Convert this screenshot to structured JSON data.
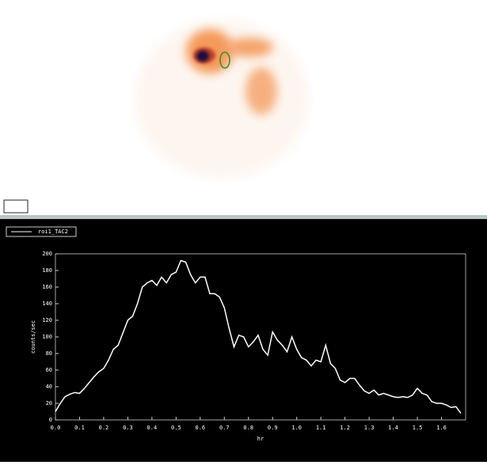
{
  "chart_data": {
    "type": "line",
    "x_label": "hr",
    "y_label": "counts/sec",
    "x": [
      0.0,
      0.02,
      0.04,
      0.06,
      0.08,
      0.1,
      0.12,
      0.14,
      0.16,
      0.18,
      0.2,
      0.22,
      0.24,
      0.26,
      0.28,
      0.3,
      0.32,
      0.34,
      0.36,
      0.38,
      0.4,
      0.42,
      0.44,
      0.46,
      0.48,
      0.5,
      0.52,
      0.54,
      0.56,
      0.58,
      0.6,
      0.62,
      0.64,
      0.66,
      0.68,
      0.7,
      0.72,
      0.74,
      0.76,
      0.78,
      0.8,
      0.82,
      0.84,
      0.86,
      0.88,
      0.9,
      0.92,
      0.94,
      0.96,
      0.98,
      1.0,
      1.02,
      1.04,
      1.06,
      1.08,
      1.1,
      1.12,
      1.14,
      1.16,
      1.18,
      1.2,
      1.22,
      1.24,
      1.26,
      1.28,
      1.3,
      1.32,
      1.34,
      1.36,
      1.38,
      1.4,
      1.42,
      1.44,
      1.46,
      1.48,
      1.5,
      1.52,
      1.54,
      1.56,
      1.58,
      1.6,
      1.62,
      1.64,
      1.66,
      1.68
    ],
    "series": [
      {
        "name": "roi1_TAC2",
        "color": "#ffffff",
        "values": [
          10,
          20,
          28,
          31,
          33,
          32,
          38,
          45,
          52,
          58,
          62,
          72,
          85,
          90,
          105,
          120,
          125,
          140,
          160,
          165,
          168,
          162,
          172,
          165,
          175,
          178,
          192,
          190,
          175,
          165,
          172,
          172,
          152,
          152,
          148,
          135,
          110,
          88,
          102,
          100,
          88,
          94,
          102,
          85,
          78,
          106,
          96,
          90,
          82,
          100,
          85,
          75,
          72,
          65,
          72,
          70,
          90,
          68,
          62,
          48,
          45,
          50,
          50,
          42,
          35,
          32,
          36,
          30,
          32,
          30,
          28,
          27,
          28,
          27,
          30,
          38,
          32,
          30,
          22,
          20,
          20,
          18,
          15,
          16,
          8
        ]
      }
    ],
    "xlim": [
      0,
      1.7
    ],
    "ylim": [
      0,
      200
    ],
    "xticks": [
      {
        "value": 0,
        "label": "0.0"
      },
      0.1,
      0.2,
      0.3,
      0.4,
      0.5,
      0.6,
      0.7,
      0.8,
      0.9,
      {
        "value": 1,
        "label": "1.0"
      },
      1.1,
      1.2,
      1.3,
      1.4,
      1.5,
      1.6
    ],
    "yticks": [
      0,
      20,
      40,
      60,
      80,
      100,
      120,
      140,
      160,
      180,
      200
    ]
  }
}
